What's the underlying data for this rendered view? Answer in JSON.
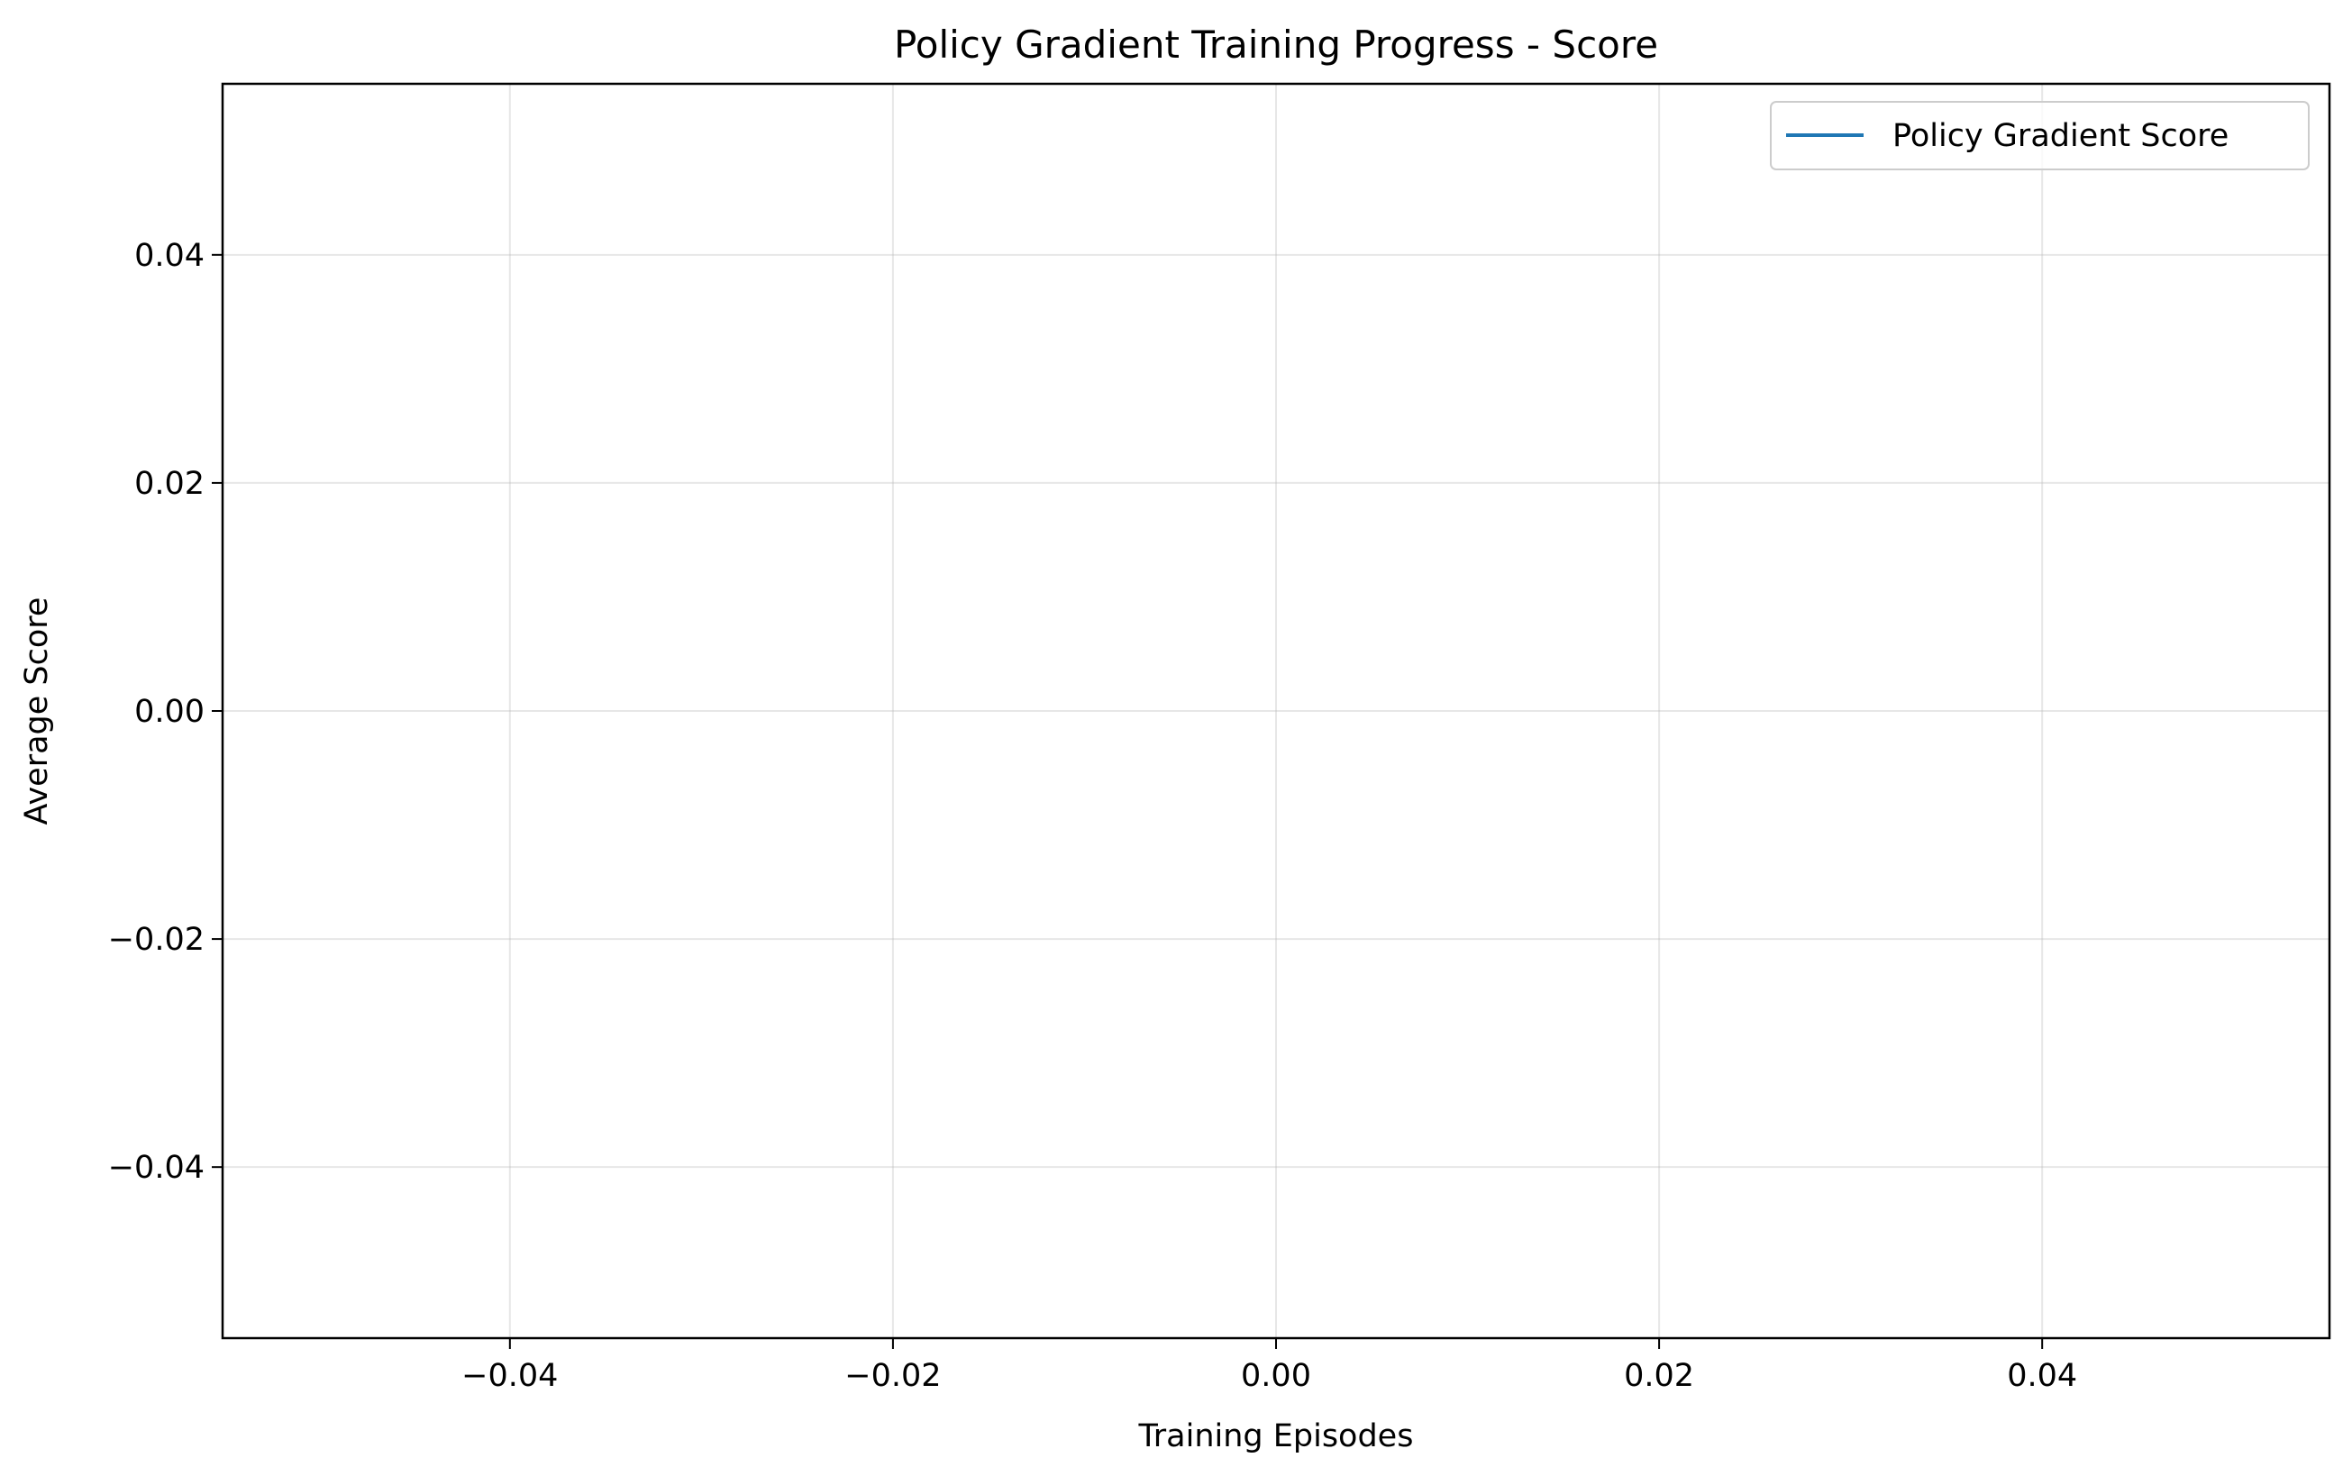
{
  "chart_data": {
    "type": "line",
    "title": "Policy Gradient Training Progress - Score",
    "xlabel": "Training Episodes",
    "ylabel": "Average Score",
    "xlim": [
      -0.055,
      0.055
    ],
    "ylim": [
      -0.055,
      0.055
    ],
    "x_ticks": [
      -0.04,
      -0.02,
      0.0,
      0.02,
      0.04
    ],
    "y_ticks": [
      -0.04,
      -0.02,
      0.0,
      0.02,
      0.04
    ],
    "x_tick_labels": [
      "−0.04",
      "−0.02",
      "0.00",
      "0.02",
      "0.04"
    ],
    "y_tick_labels": [
      "−0.04",
      "−0.02",
      "0.00",
      "0.02",
      "0.04"
    ],
    "grid": true,
    "legend_position": "top-right",
    "series": [
      {
        "name": "Policy Gradient Score",
        "color": "#1f77b4",
        "x": [],
        "y": []
      }
    ]
  }
}
